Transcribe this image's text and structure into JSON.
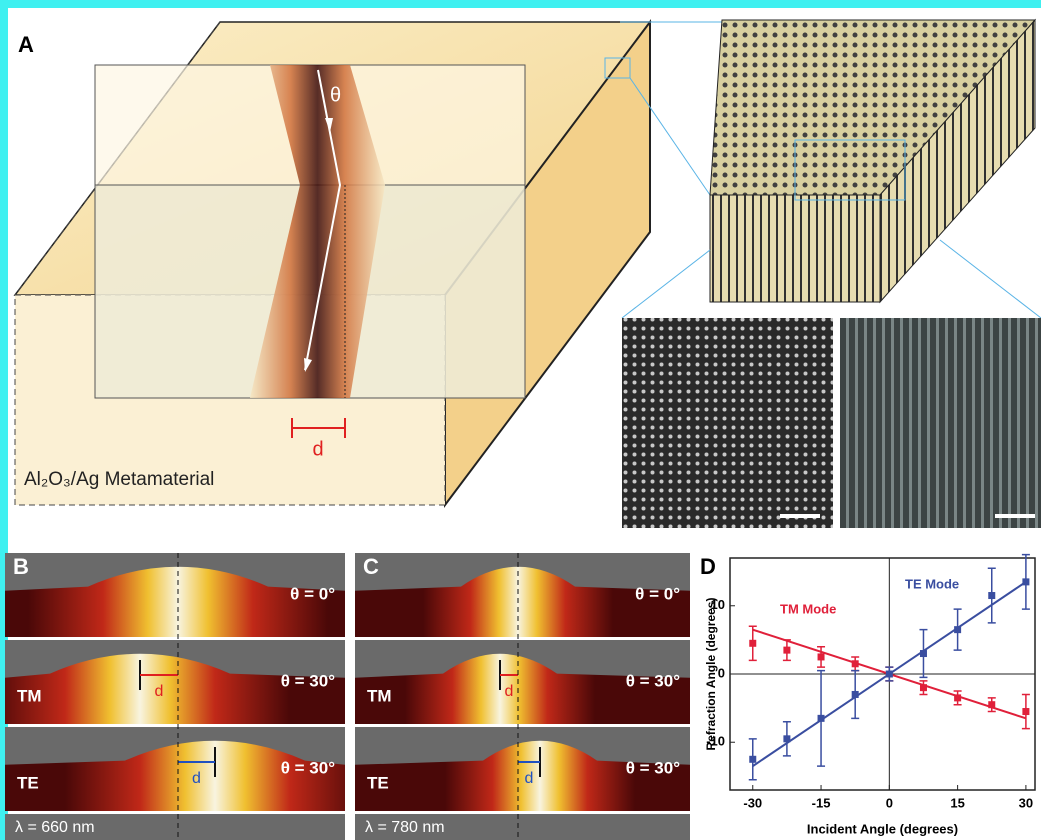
{
  "panel_a": {
    "label": "A",
    "angle": "θ",
    "shift": "d",
    "material": "Al₂O₃/Ag Metamaterial"
  },
  "panel_b": {
    "label": "B",
    "rows": [
      {
        "angle": "θ = 0°"
      },
      {
        "mode": "TM",
        "angle": "θ = 30°",
        "shift": "d"
      },
      {
        "mode": "TE",
        "angle": "θ = 30°",
        "shift": "d"
      }
    ],
    "wavelength": "λ = 660 nm"
  },
  "panel_c": {
    "label": "C",
    "rows": [
      {
        "angle": "θ = 0°"
      },
      {
        "mode": "TM",
        "angle": "θ = 30°",
        "shift": "d"
      },
      {
        "mode": "TE",
        "angle": "θ = 30°",
        "shift": "d"
      }
    ],
    "wavelength": "λ = 780 nm"
  },
  "chart_data": {
    "type": "scatter",
    "label": "D",
    "x_label": "Incident Angle (degrees)",
    "y_label": "Refraction Angle (degrees)",
    "x": [
      -30,
      -22.5,
      -15,
      -7.5,
      0,
      7.5,
      15,
      22.5,
      30
    ],
    "fit_x": [
      -30,
      30
    ],
    "series": [
      {
        "name": "TM Mode",
        "color": "#e0203a",
        "values": [
          4.5,
          3.5,
          2.5,
          1.5,
          0,
          -2,
          -3.5,
          -4.5,
          -5.5
        ],
        "errors": [
          2.5,
          1.5,
          1.5,
          1,
          1,
          1,
          1,
          1,
          2.5
        ],
        "fit": [
          6.5,
          -6.5
        ]
      },
      {
        "name": "TE Mode",
        "color": "#3a4ea0",
        "values": [
          -12.5,
          -9.5,
          -6.5,
          -3,
          0,
          3,
          6.5,
          11.5,
          13.5
        ],
        "errors": [
          3,
          2.5,
          7,
          3.5,
          1,
          3.5,
          3,
          4,
          4
        ],
        "fit": [
          -13.5,
          13.5
        ]
      }
    ],
    "xlim": [
      -35,
      32
    ],
    "ylim": [
      -17,
      17
    ],
    "xticks": [
      -30,
      -15,
      0,
      15,
      30
    ],
    "yticks": [
      -10,
      0,
      10
    ]
  }
}
